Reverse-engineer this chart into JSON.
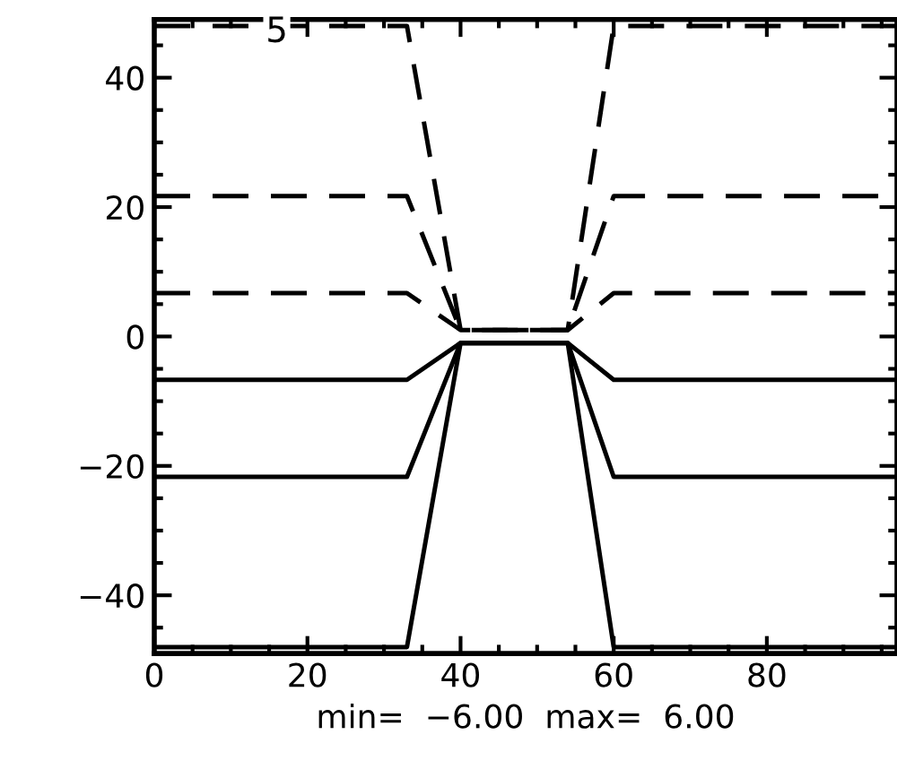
{
  "chart_data": {
    "type": "line",
    "xlabel": "min=  −6.00  max=  6.00",
    "annotations": [
      {
        "text": "5",
        "x": 16,
        "y": 47
      }
    ],
    "xlim": [
      0,
      97
    ],
    "ylim": [
      -49,
      49
    ],
    "xticks": [
      0,
      20,
      40,
      60,
      80
    ],
    "yticks": [
      -40,
      -20,
      0,
      20,
      40
    ],
    "grid": false,
    "marker": "none",
    "series": [
      {
        "color": "#000000",
        "line_style": "dashed",
        "x": [
          0,
          33,
          40,
          54,
          60,
          97
        ],
        "values": [
          48,
          48,
          1,
          1,
          48,
          48
        ]
      },
      {
        "color": "#000000",
        "line_style": "dashed",
        "x": [
          0,
          33,
          40,
          54,
          60,
          97
        ],
        "values": [
          21.7,
          21.7,
          1,
          1,
          21.7,
          21.7
        ]
      },
      {
        "color": "#000000",
        "line_style": "dashed",
        "x": [
          0,
          33,
          40,
          54,
          60,
          97
        ],
        "values": [
          6.7,
          6.7,
          1,
          1,
          6.7,
          6.7
        ]
      },
      {
        "color": "#000000",
        "line_style": "solid",
        "x": [
          0,
          33,
          40,
          54,
          60,
          97
        ],
        "values": [
          -6.7,
          -6.7,
          -1,
          -1,
          -6.7,
          -6.7
        ]
      },
      {
        "color": "#000000",
        "line_style": "solid",
        "x": [
          0,
          33,
          40,
          54,
          60,
          97
        ],
        "values": [
          -21.7,
          -21.7,
          -1,
          -1,
          -21.7,
          -21.7
        ]
      },
      {
        "color": "#000000",
        "line_style": "solid",
        "x": [
          0,
          33,
          40,
          54,
          60,
          97
        ],
        "values": [
          -48,
          -48,
          -1,
          -1,
          -48,
          -48
        ]
      }
    ]
  }
}
